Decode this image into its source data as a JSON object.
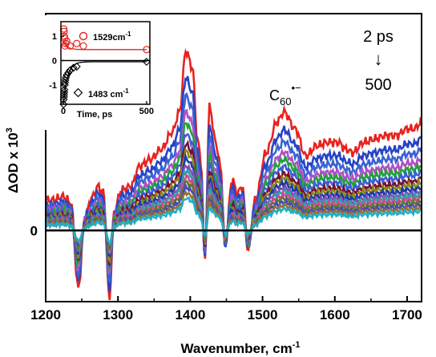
{
  "chart_data": [
    {
      "type": "line",
      "xlabel": "Wavenumber, cm",
      "xlabel_sup": "-1",
      "ylabel": "ΔOD x 10",
      "ylabel_sup": "3",
      "xlim": [
        1200,
        1720
      ],
      "ylim": [
        -2.1,
        6.4
      ],
      "xticks": [
        1200,
        1300,
        1400,
        1500,
        1600,
        1700
      ],
      "yticks": [
        0,
        5
      ],
      "zero_line": true,
      "annotations": {
        "species_main": "C",
        "species_sub": "60",
        "species_sup": "•−",
        "time_start": "2 ps",
        "arrow": "↓",
        "time_end": "500"
      },
      "series": [
        {
          "color": "#e8231f",
          "scale": 1.0
        },
        {
          "color": "#2744c6",
          "scale": 0.85
        },
        {
          "color": "#3a63d2",
          "scale": 0.75
        },
        {
          "color": "#b24fc8",
          "scale": 0.66
        },
        {
          "color": "#23a23a",
          "scale": 0.6
        },
        {
          "color": "#3b5fd6",
          "scale": 0.54
        },
        {
          "color": "#7a1030",
          "scale": 0.48
        },
        {
          "color": "#8a8a1a",
          "scale": 0.44
        },
        {
          "color": "#1b3aa8",
          "scale": 0.4
        },
        {
          "color": "#7b4fb8",
          "scale": 0.36
        },
        {
          "color": "#2aa4a8",
          "scale": 0.33
        },
        {
          "color": "#d04a90",
          "scale": 0.3
        },
        {
          "color": "#5c7a2a",
          "scale": 0.27
        },
        {
          "color": "#4a4ab8",
          "scale": 0.24
        },
        {
          "color": "#9a6f30",
          "scale": 0.21
        },
        {
          "color": "#20b0c8",
          "scale": 0.18
        }
      ],
      "peaks": [
        {
          "x": 1210,
          "y": 0.9
        },
        {
          "x": 1225,
          "y": 1.0
        },
        {
          "x": 1235,
          "y": 0.8
        },
        {
          "x": 1245,
          "y": -1.7
        },
        {
          "x": 1255,
          "y": 0.5
        },
        {
          "x": 1265,
          "y": 1.0
        },
        {
          "x": 1272,
          "y": 1.3
        },
        {
          "x": 1280,
          "y": 1.1
        },
        {
          "x": 1288,
          "y": -2.0
        },
        {
          "x": 1295,
          "y": 0.6
        },
        {
          "x": 1305,
          "y": 1.2
        },
        {
          "x": 1318,
          "y": 1.3
        },
        {
          "x": 1330,
          "y": 1.9
        },
        {
          "x": 1345,
          "y": 2.1
        },
        {
          "x": 1360,
          "y": 2.4
        },
        {
          "x": 1375,
          "y": 2.9
        },
        {
          "x": 1385,
          "y": 3.5
        },
        {
          "x": 1394,
          "y": 5.3
        },
        {
          "x": 1403,
          "y": 4.8
        },
        {
          "x": 1410,
          "y": 2.7
        },
        {
          "x": 1415,
          "y": 2.0
        },
        {
          "x": 1420,
          "y": -0.9
        },
        {
          "x": 1427,
          "y": 3.7
        },
        {
          "x": 1434,
          "y": 2.7
        },
        {
          "x": 1442,
          "y": 1.9
        },
        {
          "x": 1448,
          "y": -0.5
        },
        {
          "x": 1458,
          "y": 1.5
        },
        {
          "x": 1465,
          "y": 1.1
        },
        {
          "x": 1472,
          "y": 1.3
        },
        {
          "x": 1480,
          "y": -0.6
        },
        {
          "x": 1490,
          "y": 0.9
        },
        {
          "x": 1505,
          "y": 2.3
        },
        {
          "x": 1520,
          "y": 3.2
        },
        {
          "x": 1530,
          "y": 3.5
        },
        {
          "x": 1545,
          "y": 3.0
        },
        {
          "x": 1560,
          "y": 2.2
        },
        {
          "x": 1575,
          "y": 2.5
        },
        {
          "x": 1590,
          "y": 2.6
        },
        {
          "x": 1605,
          "y": 2.6
        },
        {
          "x": 1615,
          "y": 2.4
        },
        {
          "x": 1625,
          "y": 2.3
        },
        {
          "x": 1640,
          "y": 2.6
        },
        {
          "x": 1655,
          "y": 2.7
        },
        {
          "x": 1670,
          "y": 2.8
        },
        {
          "x": 1685,
          "y": 2.8
        },
        {
          "x": 1700,
          "y": 3.0
        },
        {
          "x": 1710,
          "y": 3.0
        },
        {
          "x": 1720,
          "y": 3.2
        }
      ]
    },
    {
      "type": "scatter",
      "inset": true,
      "xlabel": "Time, ps",
      "xlim": [
        -15,
        520
      ],
      "ylim": [
        -1.8,
        1.6
      ],
      "xticks": [
        0,
        500
      ],
      "yticks": [
        -1,
        0,
        1
      ],
      "series": [
        {
          "name": "1529cm",
          "name_sup": "-1",
          "color": "#e8231f",
          "marker": "circle",
          "points": [
            [
              2,
              1.3
            ],
            [
              4,
              1.2
            ],
            [
              6,
              1.0
            ],
            [
              8,
              0.9
            ],
            [
              10,
              0.6
            ],
            [
              15,
              0.7
            ],
            [
              20,
              0.8
            ],
            [
              40,
              0.6
            ],
            [
              80,
              0.7
            ],
            [
              120,
              0.6
            ],
            [
              500,
              0.45
            ]
          ],
          "fit_start": 0.75,
          "fit_end": 0.45
        },
        {
          "name": "1483 cm",
          "name_sup": "-1",
          "color": "#000000",
          "marker": "diamond",
          "points": [
            [
              1,
              -1.8
            ],
            [
              2,
              -1.6
            ],
            [
              3,
              -1.5
            ],
            [
              4,
              -1.4
            ],
            [
              5,
              -1.3
            ],
            [
              6,
              -1.2
            ],
            [
              8,
              -1.0
            ],
            [
              10,
              -0.9
            ],
            [
              12,
              -0.8
            ],
            [
              15,
              -0.7
            ],
            [
              20,
              -0.6
            ],
            [
              30,
              -0.5
            ],
            [
              40,
              -0.4
            ],
            [
              60,
              -0.3
            ],
            [
              80,
              -0.25
            ],
            [
              500,
              -0.05
            ]
          ],
          "fit_start": -1.8,
          "fit_end": -0.05
        }
      ]
    }
  ]
}
